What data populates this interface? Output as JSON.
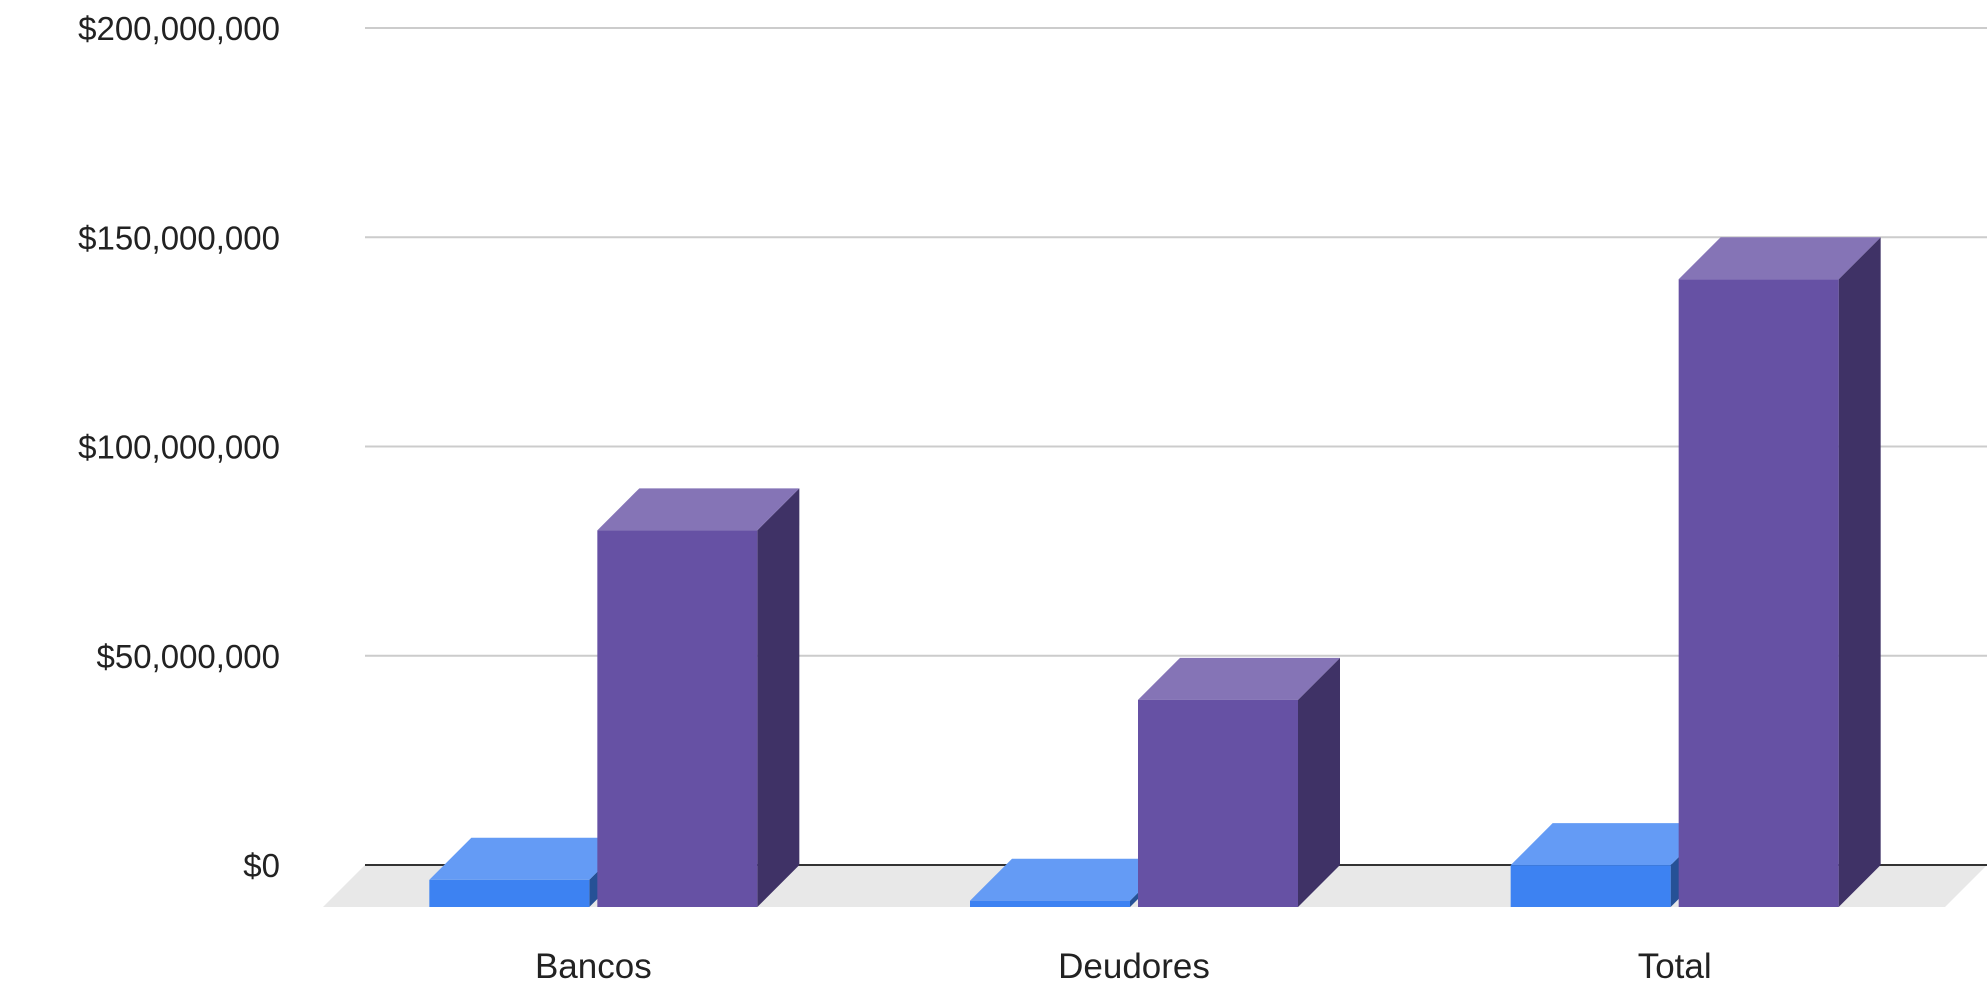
{
  "chart_data": {
    "type": "bar",
    "style": "3d-clustered-column",
    "categories": [
      "Bancos",
      "Deudores",
      "Total"
    ],
    "series": [
      {
        "values": [
          6500000,
          1500000,
          10000000
        ],
        "color": "#3d82f2"
      },
      {
        "values": [
          90000000,
          49500000,
          150000000
        ],
        "color": "#6651a4"
      }
    ],
    "y_ticks": [
      "$0",
      "$50,000,000",
      "$100,000,000",
      "$150,000,000",
      "$200,000,000"
    ],
    "ylim": [
      0,
      200000000
    ],
    "tick_step": 50000000,
    "grid": true,
    "legend": "none",
    "colors": {
      "grid": "#cccccc",
      "axis": "#333333",
      "floor": "#e8e8e8",
      "text": "#222222"
    }
  }
}
